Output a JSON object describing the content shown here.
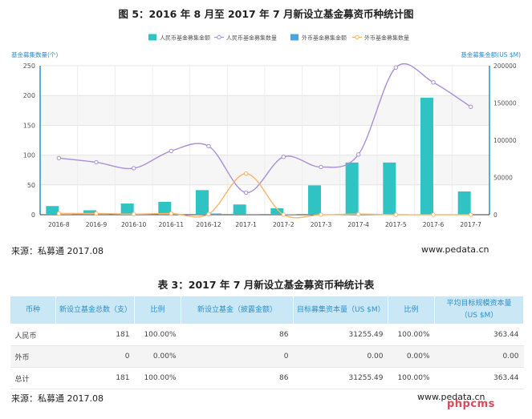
{
  "figure_title": "图 5：2016 年 8 月至 2017 年 7 月新设立基金募资币种统计图",
  "chart_data": {
    "type": "bar",
    "categories": [
      "2016-8",
      "2016-9",
      "2016-10",
      "2016-11",
      "2016-12",
      "2017-1",
      "2017-2",
      "2017-3",
      "2017-4",
      "2017-5",
      "2017-6",
      "2017-7"
    ],
    "series": [
      {
        "name": "人民币基金募集金额",
        "kind": "bar",
        "axis": "right",
        "color": "#30c3c3",
        "values": [
          11600,
          5900,
          15000,
          17300,
          33000,
          13700,
          8700,
          39400,
          70000,
          70000,
          157000,
          31255
        ]
      },
      {
        "name": "人民币基金募集数量",
        "kind": "line",
        "axis": "left",
        "color": "#a98fd8",
        "values": [
          95,
          88,
          78,
          107,
          115,
          37,
          97,
          80,
          101,
          247,
          222,
          181
        ]
      },
      {
        "name": "外币基金募集金额",
        "kind": "bar",
        "axis": "right",
        "color": "#4ba4dc",
        "values": [
          700,
          300,
          300,
          900,
          1600,
          800,
          500,
          300,
          1300,
          700,
          400,
          0
        ]
      },
      {
        "name": "外币基金募集数量",
        "kind": "line",
        "axis": "left",
        "color": "#f7b56a",
        "values": [
          2,
          2,
          1,
          2,
          1,
          69,
          0,
          0,
          1,
          0,
          0,
          0
        ]
      }
    ],
    "ylabel_left": "基金募集数量(个)",
    "ylabel_right": "基金募集金额(US $M)",
    "ylim_left": [
      0,
      250
    ],
    "ylim_right": [
      0,
      200000
    ],
    "left_ticks": [
      "0",
      "50",
      "100",
      "150",
      "200",
      "250"
    ],
    "right_ticks": [
      "0",
      "50000",
      "100000",
      "150000",
      "200000"
    ],
    "legend_position": "top",
    "grid": true
  },
  "source_text": "来源：私募通  2017.08",
  "site_text": "www.pedata.cn",
  "table": {
    "title": "表 3：2017 年 7 月新设立基金募资币种统计表",
    "headers": [
      "币种",
      "新设立基金总数（支）",
      "比例",
      "新设立基金（披露金额）",
      "目标募集资本量（US $M）",
      "比例",
      "平均目标规模资本量（US $M）"
    ],
    "rows": [
      [
        "人民币",
        "181",
        "100.00%",
        "86",
        "31255.49",
        "100.00%",
        "363.44"
      ],
      [
        "外币",
        "0",
        "0.00%",
        "0",
        "0.00",
        "0.00%",
        "0.00"
      ],
      [
        "总计",
        "181",
        "100.00%",
        "86",
        "31255.49",
        "100.00%",
        "363.44"
      ]
    ]
  },
  "watermark": "phpcms"
}
